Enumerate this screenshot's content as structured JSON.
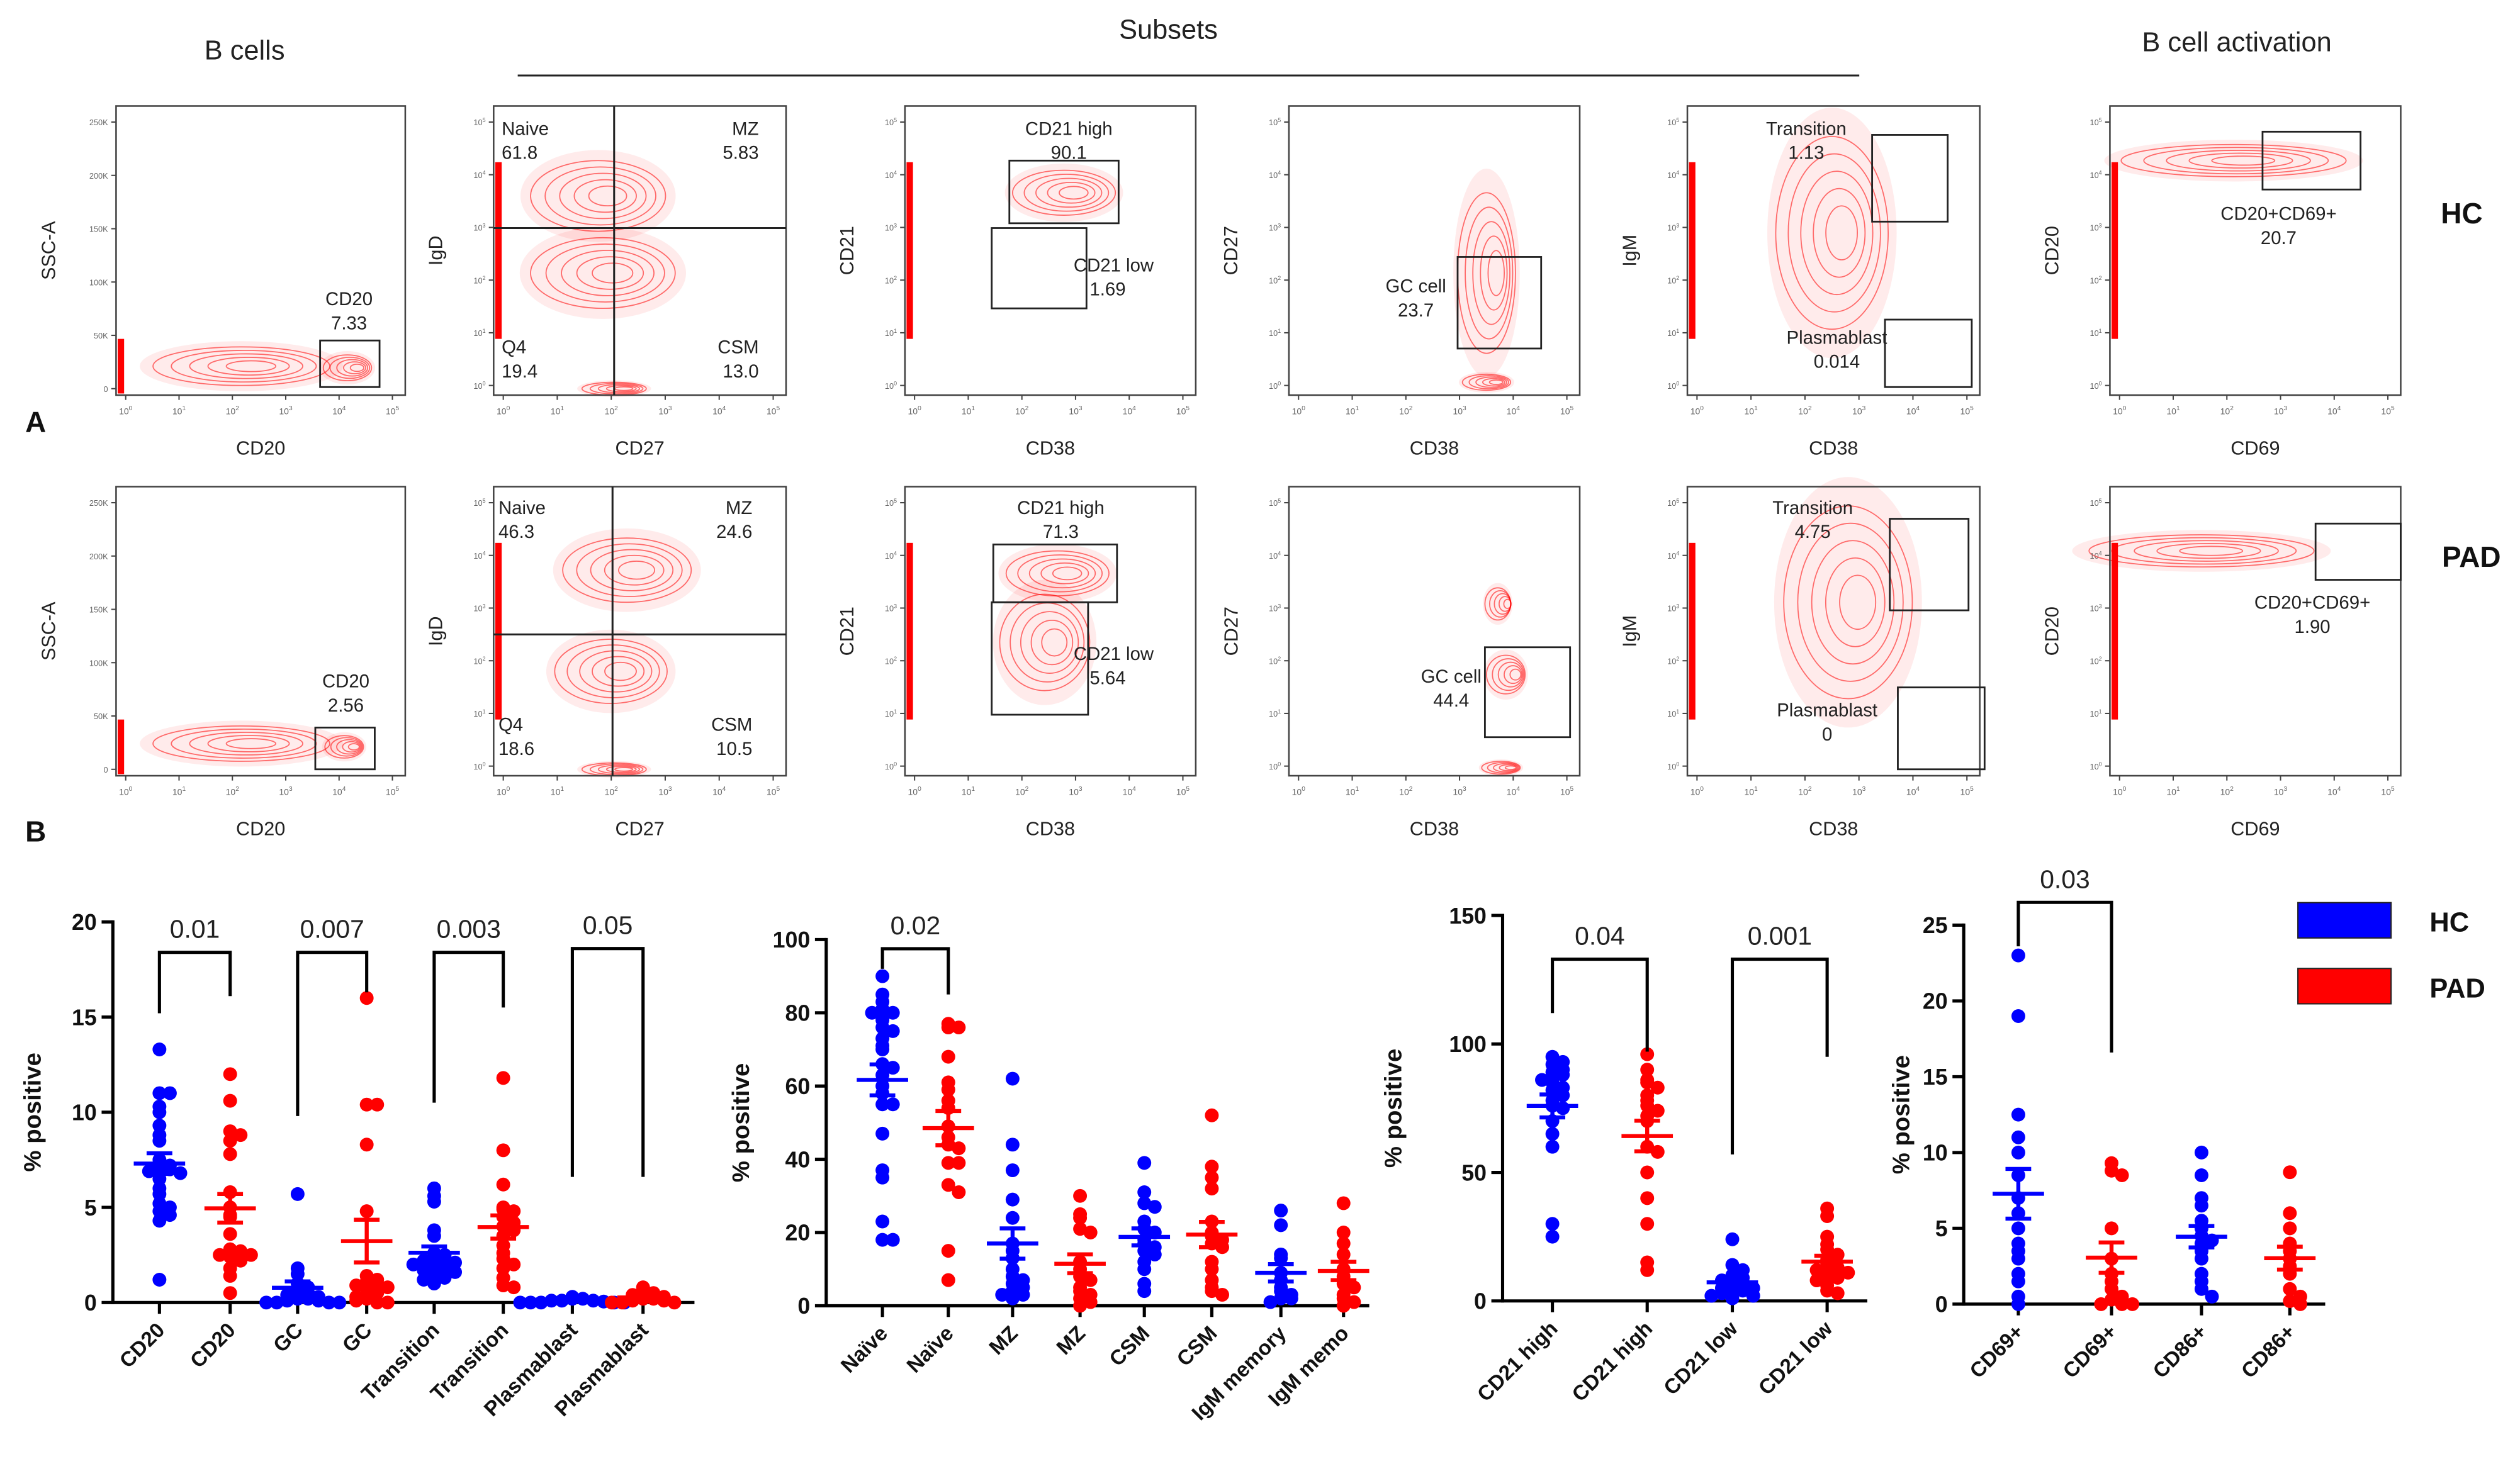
{
  "figure": {
    "panel_a_label": "A",
    "panel_b_label": "B"
  },
  "flow": {
    "headers": {
      "b_cells": "B cells",
      "subsets": "Subsets",
      "activation": "B cell activation"
    },
    "scatter_y_ticks": [
      "0",
      "50K",
      "100K",
      "150K",
      "200K",
      "250K"
    ],
    "log_base": "10",
    "log_exponents": [
      "0",
      "1",
      "2",
      "3",
      "4",
      "5"
    ],
    "rows": [
      {
        "label": "HC",
        "panels": [
          {
            "x_axis": "CD20",
            "y_axis": "SSC-A",
            "gates": [
              {
                "name": "CD20",
                "value": "7.33"
              }
            ]
          },
          {
            "x_axis": "CD27",
            "y_axis": "IgD",
            "gates": [
              {
                "name": "Naive",
                "value": "61.8"
              },
              {
                "name": "MZ",
                "value": "5.83"
              },
              {
                "name": "Q4",
                "value": "19.4"
              },
              {
                "name": "CSM",
                "value": "13.0"
              }
            ]
          },
          {
            "x_axis": "CD38",
            "y_axis": "CD21",
            "gates": [
              {
                "name": "CD21 high",
                "value": "90.1"
              },
              {
                "name": "CD21 low",
                "value": "1.69"
              }
            ]
          },
          {
            "x_axis": "CD38",
            "y_axis": "CD27",
            "gates": [
              {
                "name": "GC cell",
                "value": "23.7"
              }
            ]
          },
          {
            "x_axis": "CD38",
            "y_axis": "IgM",
            "gates": [
              {
                "name": "Transition",
                "value": "1.13"
              },
              {
                "name": "Plasmablast",
                "value": "0.014"
              }
            ]
          },
          {
            "x_axis": "CD69",
            "y_axis": "CD20",
            "gates": [
              {
                "name": "CD20+CD69+",
                "value": "20.7"
              }
            ]
          }
        ]
      },
      {
        "label": "PAD",
        "panels": [
          {
            "x_axis": "CD20",
            "y_axis": "SSC-A",
            "gates": [
              {
                "name": "CD20",
                "value": "2.56"
              }
            ]
          },
          {
            "x_axis": "CD27",
            "y_axis": "IgD",
            "gates": [
              {
                "name": "Naive",
                "value": "46.3"
              },
              {
                "name": "MZ",
                "value": "24.6"
              },
              {
                "name": "Q4",
                "value": "18.6"
              },
              {
                "name": "CSM",
                "value": "10.5"
              }
            ]
          },
          {
            "x_axis": "CD38",
            "y_axis": "CD21",
            "gates": [
              {
                "name": "CD21 high",
                "value": "71.3"
              },
              {
                "name": "CD21 low",
                "value": "5.64"
              }
            ]
          },
          {
            "x_axis": "CD38",
            "y_axis": "CD27",
            "gates": [
              {
                "name": "GC cell",
                "value": "44.4"
              }
            ]
          },
          {
            "x_axis": "CD38",
            "y_axis": "IgM",
            "gates": [
              {
                "name": "Transition",
                "value": "4.75"
              },
              {
                "name": "Plasmablast",
                "value": "0"
              }
            ]
          },
          {
            "x_axis": "CD69",
            "y_axis": "CD20",
            "gates": [
              {
                "name": "CD20+CD69+",
                "value": "1.90"
              }
            ]
          }
        ]
      }
    ]
  },
  "legend": {
    "placement": "right",
    "items": [
      {
        "label": "HC",
        "color": "#0000ff"
      },
      {
        "label": "PAD",
        "color": "#ff0000"
      }
    ]
  },
  "chart_data": [
    {
      "type": "scatter",
      "ylabel": "% positive",
      "ylim": [
        0,
        20
      ],
      "yticks": [
        "0",
        "5",
        "10",
        "15",
        "20"
      ],
      "columns": [
        {
          "label": "CD20",
          "group": "HC",
          "values": [
            13.3,
            11,
            11,
            10.3,
            10,
            9.3,
            8.8,
            8.5,
            7.5,
            7.3,
            7.2,
            7,
            7,
            6.9,
            6.8,
            6.5,
            6,
            5.7,
            5.2,
            5,
            4.8,
            4.6,
            4.3,
            1.2
          ]
        },
        {
          "label": "CD20",
          "group": "PAD",
          "values": [
            12,
            10.6,
            9,
            8.8,
            8.5,
            7.8,
            5.8,
            5,
            4.6,
            4.5,
            3.6,
            2.8,
            2.7,
            2.5,
            2.5,
            2.4,
            2.2,
            1.8,
            1.4,
            0.5
          ]
        },
        {
          "label": "GC",
          "group": "HC",
          "values": [
            5.7,
            1.8,
            1.5,
            1.0,
            0.8,
            0.6,
            0.5,
            0.4,
            0.3,
            0.2,
            0.2,
            0.1,
            0.1,
            0,
            0,
            0,
            0
          ]
        },
        {
          "label": "GC",
          "group": "PAD",
          "values": [
            16,
            10.4,
            10.4,
            8.3,
            4.8,
            1.4,
            1.2,
            1.1,
            1.0,
            0.9,
            0.8,
            0.7,
            0.5,
            0.3,
            0.2,
            0,
            0.1,
            0
          ]
        },
        {
          "label": "Transition",
          "group": "HC",
          "values": [
            6,
            5.6,
            5.3,
            3.8,
            3.5,
            2.6,
            2.5,
            2.4,
            2.3,
            2.2,
            2.1,
            2.0,
            1.9,
            1.8,
            1.7,
            1.6,
            1.5,
            1.3,
            1.2,
            1.0
          ]
        },
        {
          "label": "Transition",
          "group": "PAD",
          "values": [
            11.8,
            8,
            6.2,
            5,
            4.9,
            4.8,
            4.5,
            4.2,
            4.0,
            3.8,
            3.5,
            3.0,
            2.6,
            2.3,
            2.0,
            1.8,
            1.3,
            0.9,
            0.8
          ]
        },
        {
          "label": "Plasmablast",
          "group": "HC",
          "values": [
            0.3,
            0.2,
            0.2,
            0.1,
            0.1,
            0.1,
            0.05,
            0,
            0,
            0,
            0,
            0
          ]
        },
        {
          "label": "Plasmablast",
          "group": "PAD",
          "values": [
            0.8,
            0.6,
            0.5,
            0.4,
            0.3,
            0.2,
            0.2,
            0.1,
            0.1,
            0,
            0,
            0
          ]
        }
      ],
      "comparisons": [
        {
          "from": 0,
          "to": 1,
          "p": "0.01",
          "top": 18.4,
          "left_end": 15.2,
          "right_end": 16.1
        },
        {
          "from": 2,
          "to": 3,
          "p": "0.007",
          "top": 18.4,
          "left_end": 9.8,
          "right_end": 16.3
        },
        {
          "from": 4,
          "to": 5,
          "p": "0.003",
          "top": 18.4,
          "left_end": 10.5,
          "right_end": 15.5
        },
        {
          "from": 6,
          "to": 7,
          "p": "0.05",
          "top": 18.6,
          "left_end": 6.6,
          "right_end": 6.6
        }
      ]
    },
    {
      "type": "scatter",
      "ylabel": "% positive",
      "ylim": [
        0,
        100
      ],
      "yticks": [
        "0",
        "20",
        "40",
        "60",
        "80",
        "100"
      ],
      "columns": [
        {
          "label": "Naïve",
          "group": "HC",
          "values": [
            90,
            85,
            83,
            81,
            80,
            80,
            78,
            76,
            75,
            73,
            71,
            70,
            66,
            65,
            63,
            60,
            58,
            55,
            55,
            47,
            37,
            35,
            23,
            18,
            18
          ]
        },
        {
          "label": "Naïve",
          "group": "PAD",
          "values": [
            77,
            76,
            76,
            68,
            61,
            59,
            56,
            54,
            49,
            46,
            44,
            43,
            39,
            39,
            33,
            31,
            15,
            7
          ]
        },
        {
          "label": "MZ",
          "group": "HC",
          "values": [
            62,
            44,
            37,
            29,
            24,
            17,
            15,
            13,
            10,
            8,
            7,
            6,
            5,
            4,
            3,
            3,
            2
          ]
        },
        {
          "label": "MZ",
          "group": "PAD",
          "values": [
            30,
            25,
            24,
            21,
            20,
            12,
            10,
            8,
            7,
            5,
            4,
            3,
            2,
            1,
            0
          ]
        },
        {
          "label": "CSM",
          "group": "HC",
          "values": [
            39,
            31,
            28,
            27,
            23,
            21,
            20,
            18,
            17,
            16,
            15,
            14,
            12,
            10,
            6,
            4
          ]
        },
        {
          "label": "CSM",
          "group": "PAD",
          "values": [
            52,
            38,
            35,
            32,
            23,
            20,
            19,
            18,
            17,
            16,
            12,
            10,
            7,
            5,
            4,
            3
          ]
        },
        {
          "label": "IgM memory",
          "group": "HC",
          "values": [
            26,
            22,
            14,
            13,
            9,
            7,
            5,
            4,
            3,
            2,
            2,
            1
          ]
        },
        {
          "label": "IgM memo",
          "group": "PAD",
          "values": [
            28,
            20,
            17,
            14,
            10,
            8,
            6,
            5,
            3,
            2,
            1,
            0
          ]
        }
      ],
      "comparisons": [
        {
          "from": 0,
          "to": 1,
          "p": "0.02",
          "top": 97.5,
          "left_end": 92,
          "right_end": 85
        }
      ]
    },
    {
      "type": "scatter",
      "ylabel": "% positive",
      "ylim": [
        0,
        150
      ],
      "yticks": [
        "0",
        "50",
        "100",
        "150"
      ],
      "columns": [
        {
          "label": "CD21 high",
          "group": "HC",
          "values": [
            95,
            93,
            92,
            90,
            89,
            88,
            86,
            85,
            83,
            82,
            80,
            78,
            76,
            75,
            70,
            65,
            60,
            30,
            25
          ]
        },
        {
          "label": "CD21 high",
          "group": "PAD",
          "values": [
            96,
            90,
            86,
            85,
            83,
            80,
            78,
            76,
            74,
            72,
            70,
            60,
            58,
            50,
            40,
            30,
            15,
            12
          ]
        },
        {
          "label": "CD21 low",
          "group": "HC",
          "values": [
            24,
            14,
            12,
            10,
            9,
            8,
            7,
            6,
            5,
            5,
            4,
            4,
            3,
            2,
            2,
            1
          ]
        },
        {
          "label": "CD21 low",
          "group": "PAD",
          "values": [
            36,
            33,
            25,
            22,
            20,
            18,
            16,
            14,
            13,
            12,
            11,
            10,
            9,
            8,
            6,
            4,
            3
          ]
        }
      ],
      "comparisons": [
        {
          "from": 0,
          "to": 1,
          "p": "0.04",
          "top": 133,
          "left_end": 112,
          "right_end": 97
        },
        {
          "from": 2,
          "to": 3,
          "p": "0.001",
          "top": 133,
          "left_end": 57,
          "right_end": 95
        }
      ]
    },
    {
      "type": "scatter",
      "ylabel": "% positive",
      "ylim": [
        0,
        25
      ],
      "yticks": [
        "0",
        "5",
        "10",
        "15",
        "20",
        "25"
      ],
      "columns": [
        {
          "label": "CD69+",
          "group": "HC",
          "values": [
            23,
            19,
            12.5,
            11,
            10,
            8.5,
            7,
            6,
            5,
            4,
            3.5,
            3,
            2,
            1.5,
            0.5,
            0
          ]
        },
        {
          "label": "CD69+",
          "group": "PAD",
          "values": [
            9.3,
            8.8,
            8.5,
            5,
            3,
            2,
            1.5,
            1,
            0.5,
            0.3,
            0,
            0,
            0
          ]
        },
        {
          "label": "CD86+",
          "group": "HC",
          "values": [
            10,
            8.5,
            7,
            6.5,
            5.5,
            5,
            4.5,
            4.2,
            4,
            3.5,
            3,
            2,
            1.5,
            1,
            0.5
          ]
        },
        {
          "label": "CD86+",
          "group": "PAD",
          "values": [
            8.7,
            6,
            5,
            4,
            3.5,
            3,
            2.5,
            2,
            1,
            0.5,
            0.2,
            0
          ]
        }
      ],
      "comparisons": [
        {
          "from": 0,
          "to": 1,
          "p": "0.03",
          "top": 26.5,
          "left_end": 23.6,
          "right_end": 16.6
        }
      ]
    }
  ]
}
